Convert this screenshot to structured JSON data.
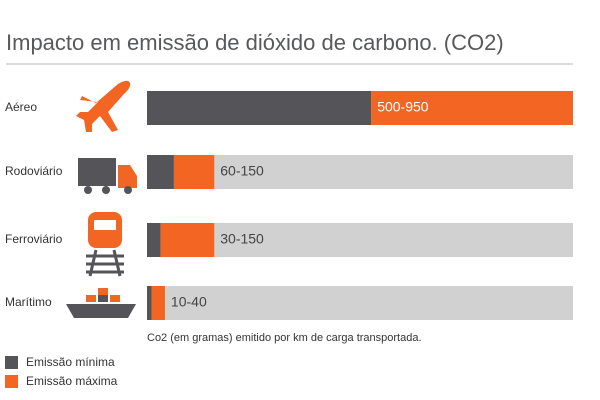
{
  "chart_data": {
    "type": "range-bar",
    "title": "Impacto em emissão de dióxido de carbono. (CO2)",
    "categories": [
      "Aéreo",
      "Rodoviário",
      "Ferroviário",
      "Marítimo"
    ],
    "series": [
      {
        "name": "Emissão mínima",
        "color": "#555459",
        "values": [
          500,
          60,
          30,
          10
        ]
      },
      {
        "name": "Emissão máxima",
        "color": "#f26522",
        "values": [
          950,
          150,
          150,
          40
        ]
      }
    ],
    "value_labels": [
      "500-950",
      "60-150",
      "30-150",
      "10-40"
    ],
    "xlim": [
      0,
      950
    ],
    "track_color": "#d1d1d1",
    "note": "Co2 (em gramas) emitido por km de carga transportada."
  }
}
